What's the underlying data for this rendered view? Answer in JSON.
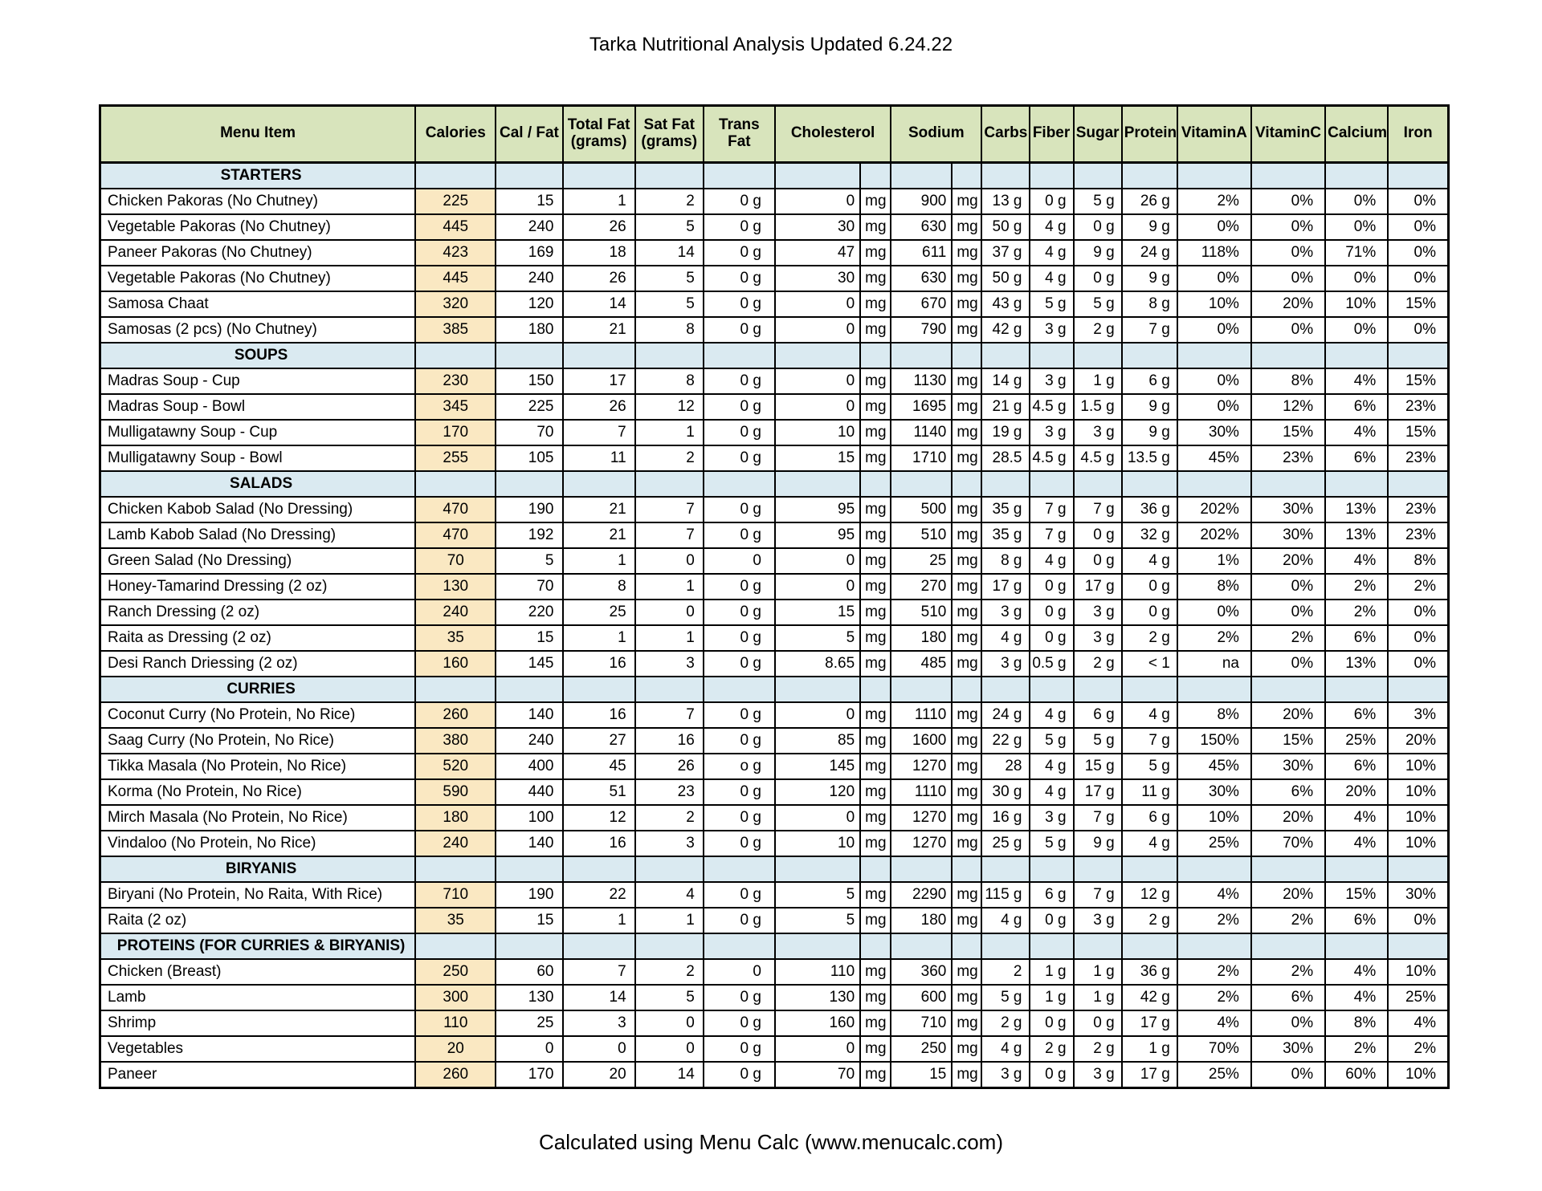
{
  "title": "Tarka Nutritional Analysis Updated 6.24.22",
  "footer": "Calculated using Menu Calc (www.menucalc.com)",
  "colors": {
    "header_yellow": "#F5DC84",
    "header_green": "#D8E4BC",
    "section_blue": "#DAEAF1",
    "calories_cream": "#FAE8C2",
    "border_black": "#000000"
  },
  "table": {
    "menu_item_header": "Menu Item",
    "columns": [
      {
        "key": "calories",
        "label": "Calories",
        "span": 1
      },
      {
        "key": "cal_fat",
        "label": "Cal / Fat",
        "span": 1
      },
      {
        "key": "total_fat",
        "label": "Total Fat\n(grams)",
        "span": 1
      },
      {
        "key": "sat_fat",
        "label": "Sat Fat\n(grams)",
        "span": 1
      },
      {
        "key": "trans_fat",
        "label": "Trans Fat",
        "span": 1
      },
      {
        "key": "cholesterol",
        "label": "Cholesterol",
        "span": 2
      },
      {
        "key": "sodium",
        "label": "Sodium",
        "span": 2
      },
      {
        "key": "carbs",
        "label": "Carbs",
        "span": 1
      },
      {
        "key": "fiber",
        "label": "Fiber",
        "span": 1
      },
      {
        "key": "sugar",
        "label": "Sugar",
        "span": 1
      },
      {
        "key": "protein",
        "label": "Protein",
        "span": 1
      },
      {
        "key": "vitamin_a",
        "label": "VitaminA",
        "span": 1
      },
      {
        "key": "vitamin_c",
        "label": "VitaminC",
        "span": 1
      },
      {
        "key": "calcium",
        "label": "Calcium",
        "span": 1
      },
      {
        "key": "iron",
        "label": "Iron",
        "span": 1
      }
    ],
    "cell_order": [
      "calories",
      "cal_fat",
      "total_fat",
      "sat_fat",
      "trans_fat",
      "cholesterol_value",
      "cholesterol_unit",
      "sodium_value",
      "sodium_unit",
      "carbs",
      "fiber",
      "sugar",
      "protein",
      "vitamin_a",
      "vitamin_c",
      "calcium",
      "iron"
    ],
    "sections": [
      {
        "name": "STARTERS",
        "rows": [
          {
            "item": "Chicken Pakoras (No Chutney)",
            "cells": [
              "225",
              "15",
              "1",
              "2",
              "0 g",
              "0",
              "mg",
              "900",
              "mg",
              "13 g",
              "0 g",
              "5 g",
              "26 g",
              "2%",
              "0%",
              "0%",
              "0%"
            ]
          },
          {
            "item": "Vegetable Pakoras (No Chutney)",
            "cells": [
              "445",
              "240",
              "26",
              "5",
              "0 g",
              "30",
              "mg",
              "630",
              "mg",
              "50 g",
              "4 g",
              "0 g",
              "9 g",
              "0%",
              "0%",
              "0%",
              "0%"
            ]
          },
          {
            "item": "Paneer Pakoras (No Chutney)",
            "cells": [
              "423",
              "169",
              "18",
              "14",
              "0 g",
              "47",
              "mg",
              "611",
              "mg",
              "37 g",
              "4 g",
              "9 g",
              "24 g",
              "118%",
              "0%",
              "71%",
              "0%"
            ]
          },
          {
            "item": "Vegetable Pakoras (No Chutney)",
            "cells": [
              "445",
              "240",
              "26",
              "5",
              "0 g",
              "30",
              "mg",
              "630",
              "mg",
              "50 g",
              "4 g",
              "0 g",
              "9 g",
              "0%",
              "0%",
              "0%",
              "0%"
            ]
          },
          {
            "item": "Samosa Chaat",
            "cells": [
              "320",
              "120",
              "14",
              "5",
              "0 g",
              "0",
              "mg",
              "670",
              "mg",
              "43 g",
              "5 g",
              "5 g",
              "8 g",
              "10%",
              "20%",
              "10%",
              "15%"
            ]
          },
          {
            "item": "Samosas (2 pcs) (No Chutney)",
            "cells": [
              "385",
              "180",
              "21",
              "8",
              "0 g",
              "0",
              "mg",
              "790",
              "mg",
              "42 g",
              "3 g",
              "2 g",
              "7 g",
              "0%",
              "0%",
              "0%",
              "0%"
            ]
          }
        ]
      },
      {
        "name": "SOUPS",
        "rows": [
          {
            "item": "Madras Soup - Cup",
            "cells": [
              "230",
              "150",
              "17",
              "8",
              "0 g",
              "0",
              "mg",
              "1130",
              "mg",
              "14 g",
              "3 g",
              "1 g",
              "6 g",
              "0%",
              "8%",
              "4%",
              "15%"
            ]
          },
          {
            "item": "Madras Soup - Bowl",
            "cells": [
              "345",
              "225",
              "26",
              "12",
              "0 g",
              "0",
              "mg",
              "1695",
              "mg",
              "21 g",
              "4.5 g",
              "1.5 g",
              "9 g",
              "0%",
              "12%",
              "6%",
              "23%"
            ]
          },
          {
            "item": "Mulligatawny Soup - Cup",
            "cells": [
              "170",
              "70",
              "7",
              "1",
              "0 g",
              "10",
              "mg",
              "1140",
              "mg",
              "19 g",
              "3 g",
              "3 g",
              "9 g",
              "30%",
              "15%",
              "4%",
              "15%"
            ]
          },
          {
            "item": "Mulligatawny Soup - Bowl",
            "cells": [
              "255",
              "105",
              "11",
              "2",
              "0 g",
              "15",
              "mg",
              "1710",
              "mg",
              "28.5",
              "4.5 g",
              "4.5 g",
              "13.5 g",
              "45%",
              "23%",
              "6%",
              "23%"
            ]
          }
        ]
      },
      {
        "name": "SALADS",
        "rows": [
          {
            "item": "Chicken Kabob Salad (No Dressing)",
            "cells": [
              "470",
              "190",
              "21",
              "7",
              "0 g",
              "95",
              "mg",
              "500",
              "mg",
              "35 g",
              "7 g",
              "7 g",
              "36 g",
              "202%",
              "30%",
              "13%",
              "23%"
            ]
          },
          {
            "item": "Lamb Kabob Salad (No Dressing)",
            "cells": [
              "470",
              "192",
              "21",
              "7",
              "0 g",
              "95",
              "mg",
              "510",
              "mg",
              "35 g",
              "7 g",
              "0 g",
              "32 g",
              "202%",
              "30%",
              "13%",
              "23%"
            ]
          },
          {
            "item": "Green Salad (No Dressing)",
            "cells": [
              "70",
              "5",
              "1",
              "0",
              "0",
              "0",
              "mg",
              "25",
              "mg",
              "8 g",
              "4 g",
              "0 g",
              "4 g",
              "1%",
              "20%",
              "4%",
              "8%"
            ]
          },
          {
            "item": "Honey-Tamarind Dressing (2 oz)",
            "cells": [
              "130",
              "70",
              "8",
              "1",
              "0 g",
              "0",
              "mg",
              "270",
              "mg",
              "17 g",
              "0 g",
              "17 g",
              "0 g",
              "8%",
              "0%",
              "2%",
              "2%"
            ]
          },
          {
            "item": "Ranch Dressing (2 oz)",
            "cells": [
              "240",
              "220",
              "25",
              "0",
              "0 g",
              "15",
              "mg",
              "510",
              "mg",
              "3 g",
              "0 g",
              "3 g",
              "0 g",
              "0%",
              "0%",
              "2%",
              "0%"
            ]
          },
          {
            "item": "Raita as Dressing (2 oz)",
            "cells": [
              "35",
              "15",
              "1",
              "1",
              "0 g",
              "5",
              "mg",
              "180",
              "mg",
              "4 g",
              "0 g",
              "3 g",
              "2 g",
              "2%",
              "2%",
              "6%",
              "0%"
            ]
          },
          {
            "item": "Desi Ranch Driessing (2 oz)",
            "cells": [
              "160",
              "145",
              "16",
              "3",
              "0 g",
              "8.65",
              "mg",
              "485",
              "mg",
              "3 g",
              "0.5 g",
              "2 g",
              "< 1",
              "na",
              "0%",
              "13%",
              "0%"
            ]
          }
        ]
      },
      {
        "name": "CURRIES",
        "rows": [
          {
            "item": "Coconut Curry (No Protein, No Rice)",
            "cells": [
              "260",
              "140",
              "16",
              "7",
              "0 g",
              "0",
              "mg",
              "1110",
              "mg",
              "24 g",
              "4 g",
              "6 g",
              "4 g",
              "8%",
              "20%",
              "6%",
              "3%"
            ]
          },
          {
            "item": "Saag Curry (No Protein, No Rice)",
            "cells": [
              "380",
              "240",
              "27",
              "16",
              "0 g",
              "85",
              "mg",
              "1600",
              "mg",
              "22 g",
              "5 g",
              "5 g",
              "7 g",
              "150%",
              "15%",
              "25%",
              "20%"
            ]
          },
          {
            "item": "Tikka Masala (No Protein, No Rice)",
            "cells": [
              "520",
              "400",
              "45",
              "26",
              "o g",
              "145",
              "mg",
              "1270",
              "mg",
              "28",
              "4 g",
              "15 g",
              "5 g",
              "45%",
              "30%",
              "6%",
              "10%"
            ]
          },
          {
            "item": "Korma (No Protein, No Rice)",
            "cells": [
              "590",
              "440",
              "51",
              "23",
              "0 g",
              "120",
              "mg",
              "1110",
              "mg",
              "30 g",
              "4 g",
              "17 g",
              "11 g",
              "30%",
              "6%",
              "20%",
              "10%"
            ]
          },
          {
            "item": "Mirch Masala (No Protein, No Rice)",
            "cells": [
              "180",
              "100",
              "12",
              "2",
              "0 g",
              "0",
              "mg",
              "1270",
              "mg",
              "16 g",
              "3 g",
              "7 g",
              "6 g",
              "10%",
              "20%",
              "4%",
              "10%"
            ]
          },
          {
            "item": "Vindaloo (No Protein, No Rice)",
            "cells": [
              "240",
              "140",
              "16",
              "3",
              "0 g",
              "10",
              "mg",
              "1270",
              "mg",
              "25 g",
              "5 g",
              "9 g",
              "4 g",
              "25%",
              "70%",
              "4%",
              "10%"
            ]
          }
        ]
      },
      {
        "name": "BIRYANIS",
        "rows": [
          {
            "item": "Biryani (No Protein, No Raita, With Rice)",
            "cells": [
              "710",
              "190",
              "22",
              "4",
              "0 g",
              "5",
              "mg",
              "2290",
              "mg",
              "115 g",
              "6 g",
              "7 g",
              "12 g",
              "4%",
              "20%",
              "15%",
              "30%"
            ]
          },
          {
            "item": "Raita (2 oz)",
            "cells": [
              "35",
              "15",
              "1",
              "1",
              "0 g",
              "5",
              "mg",
              "180",
              "mg",
              "4 g",
              "0 g",
              "3 g",
              "2 g",
              "2%",
              "2%",
              "6%",
              "0%"
            ]
          }
        ]
      },
      {
        "name": "PROTEINS (FOR CURRIES & BIRYANIS)",
        "rows": [
          {
            "item": "Chicken (Breast)",
            "cells": [
              "250",
              "60",
              "7",
              "2",
              "0",
              "110",
              "mg",
              "360",
              "mg",
              "2",
              "1 g",
              "1 g",
              "36 g",
              "2%",
              "2%",
              "4%",
              "10%"
            ]
          },
          {
            "item": "Lamb",
            "cells": [
              "300",
              "130",
              "14",
              "5",
              "0 g",
              "130",
              "mg",
              "600",
              "mg",
              "5 g",
              "1 g",
              "1 g",
              "42 g",
              "2%",
              "6%",
              "4%",
              "25%"
            ]
          },
          {
            "item": "Shrimp",
            "cells": [
              "110",
              "25",
              "3",
              "0",
              "0 g",
              "160",
              "mg",
              "710",
              "mg",
              "2 g",
              "0 g",
              "0 g",
              "17 g",
              "4%",
              "0%",
              "8%",
              "4%"
            ]
          },
          {
            "item": "Vegetables",
            "cells": [
              "20",
              "0",
              "0",
              "0",
              "0 g",
              "0",
              "mg",
              "250",
              "mg",
              "4 g",
              "2 g",
              "2 g",
              "1 g",
              "70%",
              "30%",
              "2%",
              "2%"
            ]
          },
          {
            "item": "Paneer",
            "cells": [
              "260",
              "170",
              "20",
              "14",
              "0 g",
              "70",
              "mg",
              "15",
              "mg",
              "3 g",
              "0 g",
              "3 g",
              "17 g",
              "25%",
              "0%",
              "60%",
              "10%"
            ]
          }
        ]
      }
    ]
  }
}
